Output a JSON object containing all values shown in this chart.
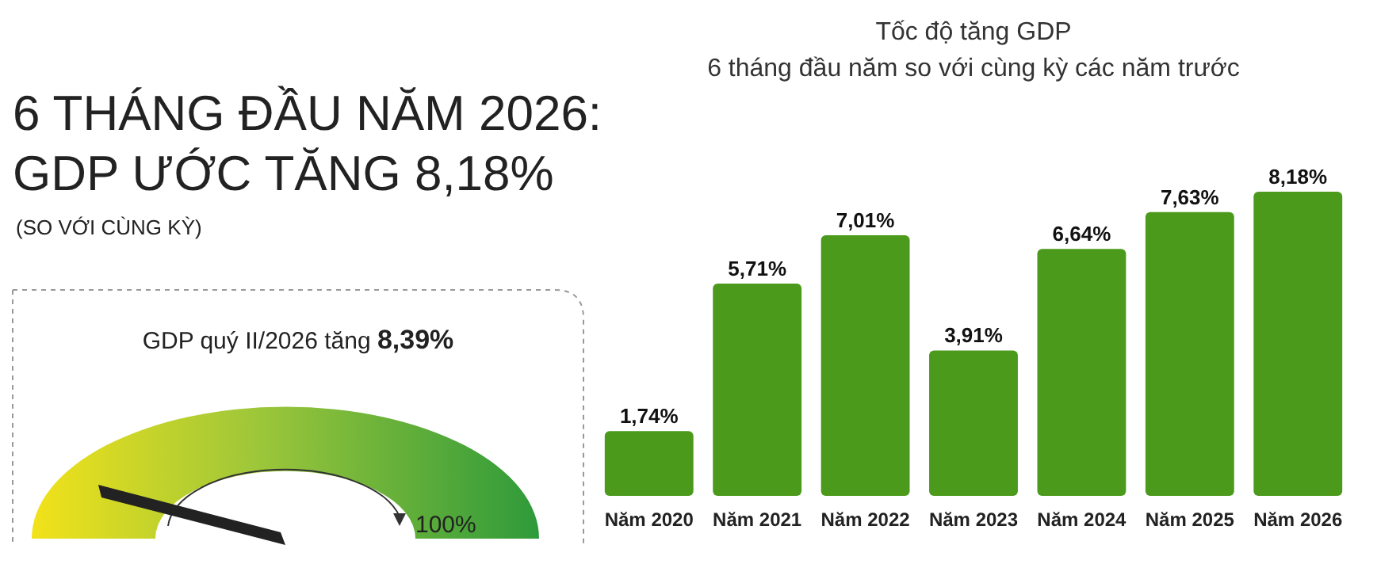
{
  "chart_data": [
    {
      "type": "other",
      "title": "6 THÁNG ĐẦU NĂM 2026:\nGDP ƯỚC TĂNG 8,18%",
      "subtitle": "(SO VỚI CÙNG KỲ)",
      "annotations": [
        "GDP quý II/2026 tăng 8,39%",
        "100%"
      ]
    },
    {
      "type": "bar",
      "title": "Tốc độ tăng GDP",
      "subtitle": "6 tháng đầu năm so với cùng kỳ các năm trước",
      "categories": [
        "Năm 2020",
        "Năm 2021",
        "Năm 2022",
        "Năm 2023",
        "Năm 2024",
        "Năm 2025",
        "Năm 2026"
      ],
      "values": [
        1.74,
        5.71,
        7.01,
        3.91,
        6.64,
        7.63,
        8.18
      ],
      "value_labels": [
        "1,74%",
        "5,71%",
        "7,01%",
        "3,91%",
        "6,64%",
        "7,63%",
        "8,18%"
      ],
      "color": "#4c9a1c"
    }
  ]
}
